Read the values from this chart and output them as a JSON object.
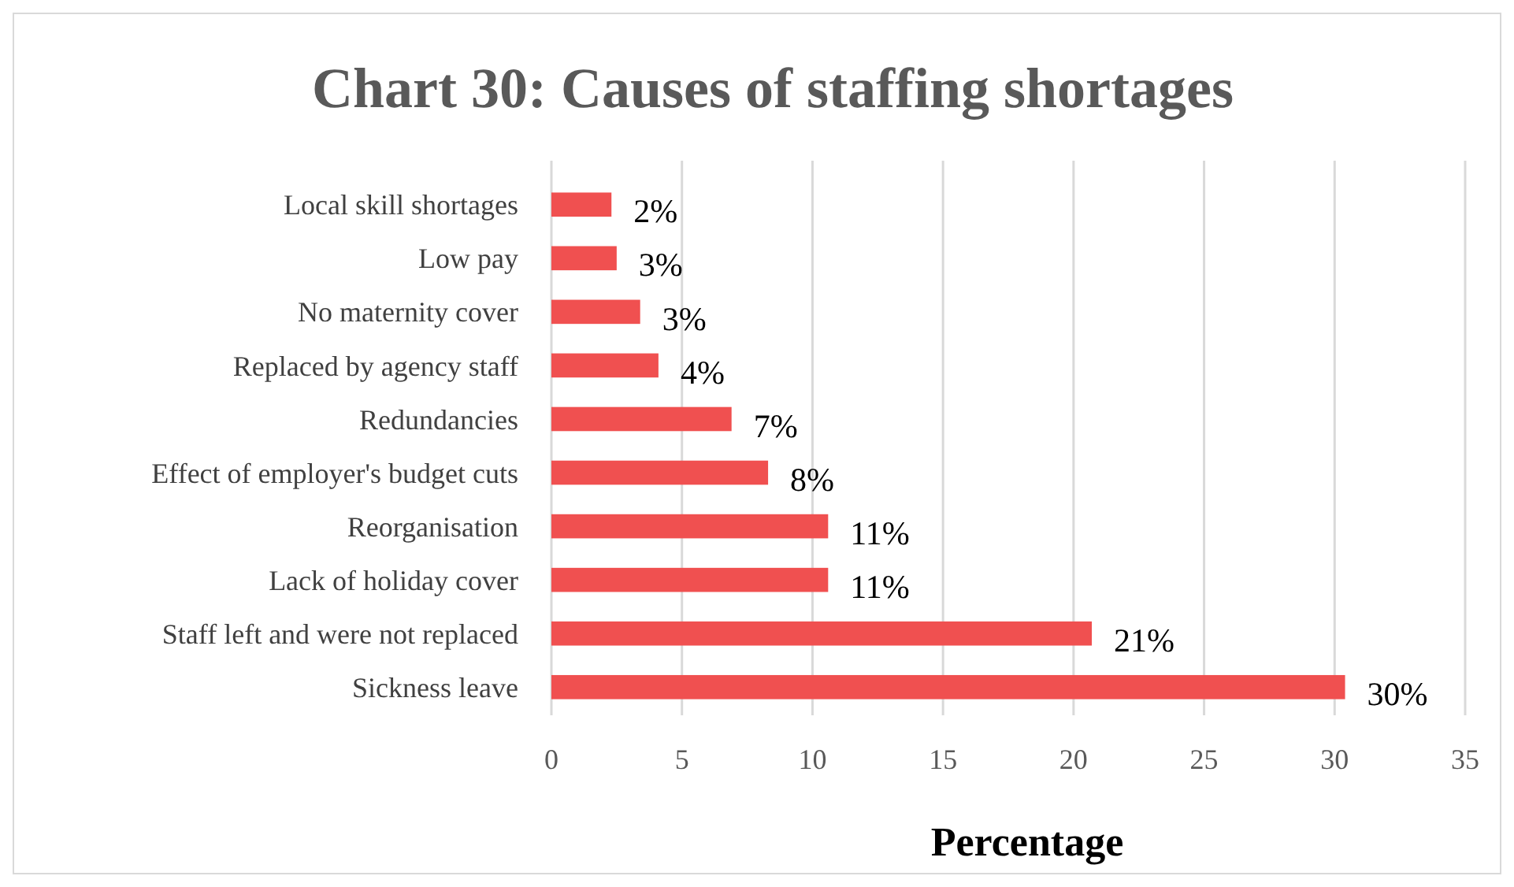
{
  "chart_data": {
    "type": "bar",
    "orientation": "horizontal",
    "title": "Chart 30: Causes of staffing shortages",
    "xlabel": "Percentage",
    "categories": [
      "Local skill shortages",
      "Low pay",
      "No maternity cover",
      "Replaced by agency staff",
      "Redundancies",
      "Effect of employer's budget cuts",
      "Reorganisation",
      "Lack of holiday cover",
      "Staff left and were not replaced",
      "Sickness leave"
    ],
    "values": [
      2.3,
      2.5,
      3.4,
      4.1,
      6.9,
      8.3,
      10.6,
      10.6,
      20.7,
      30.4
    ],
    "value_labels": [
      "2%",
      "3%",
      "3%",
      "4%",
      "7%",
      "8%",
      "11%",
      "11%",
      "21%",
      "30%"
    ],
    "color": "#f05050",
    "xlim": [
      0,
      35
    ],
    "xticks": [
      0,
      5,
      10,
      15,
      20,
      25,
      30,
      35
    ],
    "grid": "x"
  }
}
